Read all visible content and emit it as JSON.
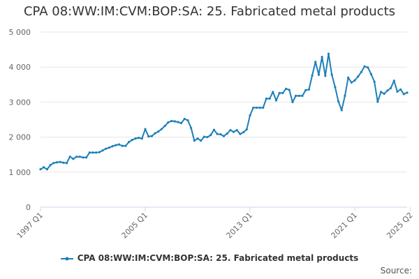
{
  "title": "CPA 08:WW:IM:CVM:BOP:SA: 25. Fabricated metal products",
  "source_label": "Source:",
  "colors": {
    "series": "#1d7fb8",
    "grid": "#e6e6e6",
    "axis": "#ccd6eb",
    "tick_text": "#666666"
  },
  "chart_data": {
    "type": "line",
    "title": "CPA 08:WW:IM:CVM:BOP:SA: 25. Fabricated metal products",
    "xlabel": "",
    "ylabel": "",
    "ylim": [
      0,
      5000
    ],
    "y_ticks": [
      0,
      1000,
      2000,
      3000,
      4000,
      5000
    ],
    "y_tick_labels": [
      "0",
      "1 000",
      "2 000",
      "3 000",
      "4 000",
      "5 000"
    ],
    "x_tick_labels": [
      "1997 Q1",
      "2005 Q1",
      "2013 Q1",
      "2021 Q1",
      "2025 Q2"
    ],
    "grid": true,
    "legend_position": "bottom-center",
    "series": [
      {
        "name": "CPA 08:WW:IM:CVM:BOP:SA: 25. Fabricated metal products",
        "start_period": "1997 Q1",
        "values": [
          1080,
          1140,
          1080,
          1200,
          1260,
          1280,
          1290,
          1270,
          1260,
          1440,
          1380,
          1440,
          1440,
          1420,
          1420,
          1560,
          1560,
          1560,
          1570,
          1620,
          1670,
          1700,
          1740,
          1770,
          1790,
          1750,
          1750,
          1860,
          1920,
          1960,
          1980,
          1960,
          2230,
          2020,
          2030,
          2110,
          2160,
          2230,
          2320,
          2420,
          2460,
          2450,
          2430,
          2400,
          2520,
          2480,
          2260,
          1900,
          1960,
          1900,
          2010,
          2000,
          2060,
          2210,
          2090,
          2080,
          2030,
          2100,
          2200,
          2150,
          2200,
          2090,
          2140,
          2220,
          2620,
          2840,
          2840,
          2840,
          2840,
          3100,
          3100,
          3290,
          3050,
          3260,
          3260,
          3380,
          3350,
          3000,
          3180,
          3180,
          3180,
          3340,
          3360,
          3760,
          4150,
          3780,
          4290,
          3750,
          4380,
          3780,
          3430,
          3020,
          2770,
          3180,
          3700,
          3560,
          3620,
          3730,
          3860,
          4020,
          3990,
          3800,
          3580,
          3010,
          3290,
          3240,
          3330,
          3400,
          3610,
          3300,
          3360,
          3230,
          3270
        ]
      }
    ]
  }
}
